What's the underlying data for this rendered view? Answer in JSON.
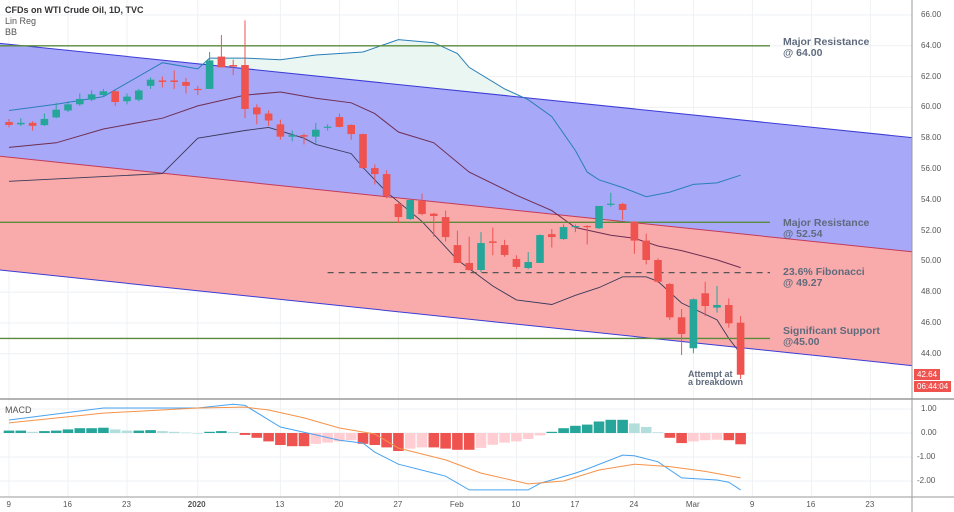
{
  "legend": {
    "title": "CFDs on WTI Crude Oil, 1D, TVC",
    "indicator1": "Lin Reg",
    "indicator2": "BB",
    "macd_label": "MACD"
  },
  "colors": {
    "up": "#26a69a",
    "down": "#ef5350",
    "hist_up_strong": "#26a69a",
    "hist_up_weak": "#b2dfdb",
    "hist_down_strong": "#ef5350",
    "hist_down_weak": "#ffcdd2",
    "macd_line": "#4aa3f0",
    "signal_line": "#f5934a",
    "channel_upper_fill": "#a7a8f8",
    "channel_lower_fill": "#f9abab",
    "channel_edge": "#3b3bd6",
    "channel_mid": "#c33b5a",
    "bb_band": "#2a7fb8",
    "bb_basis": "#6e2e52",
    "bb_fill": "#eaf6f1",
    "level_line": "#5a8a3c",
    "fib_line": "#555555",
    "annotation": "#5f6b7d"
  },
  "price_axis": {
    "ticks": [
      "66.00",
      "64.00",
      "62.00",
      "60.00",
      "58.00",
      "56.00",
      "54.00",
      "52.00",
      "50.00",
      "48.00",
      "46.00",
      "44.00"
    ],
    "last_price": "42.64",
    "countdown": "06:44:04"
  },
  "macd_axis": {
    "ticks": [
      "1.00",
      "0.00",
      "-1.00",
      "-2.00"
    ]
  },
  "time_axis": [
    {
      "label": "9",
      "date": "2019-12-09"
    },
    {
      "label": "16",
      "date": "2019-12-16"
    },
    {
      "label": "23",
      "date": "2019-12-23"
    },
    {
      "label": "2020",
      "date": "2020-01-02",
      "bold": true
    },
    {
      "label": "13",
      "date": "2020-01-13"
    },
    {
      "label": "20",
      "date": "2020-01-20"
    },
    {
      "label": "27",
      "date": "2020-01-27"
    },
    {
      "label": "Feb",
      "date": "2020-02-03"
    },
    {
      "label": "10",
      "date": "2020-02-10"
    },
    {
      "label": "17",
      "date": "2020-02-17"
    },
    {
      "label": "24",
      "date": "2020-02-24"
    },
    {
      "label": "Mar",
      "date": "2020-03-02"
    },
    {
      "label": "9",
      "date": "2020-03-09"
    },
    {
      "label": "16",
      "date": "2020-03-16"
    },
    {
      "label": "23",
      "date": "2020-03-23"
    }
  ],
  "levels": [
    {
      "name": "major-resistance-64",
      "price": 64.0,
      "style": "solid",
      "from": "2019-12-09",
      "label1": "Major Resistance",
      "label2": "@ 64.00"
    },
    {
      "name": "major-resistance-52",
      "price": 52.54,
      "style": "solid",
      "from": "2019-12-09",
      "label1": "Major Resistance",
      "label2": "@ 52.54"
    },
    {
      "name": "fibonacci-23-6",
      "price": 49.27,
      "style": "dashed",
      "from": "2020-01-17",
      "label1": "23.6% Fibonacci",
      "label2": "@ 49.27"
    },
    {
      "name": "significant-support-45",
      "price": 45.0,
      "style": "solid",
      "from": "2019-12-09",
      "label1": "Significant Support",
      "label2": "@45.00"
    }
  ],
  "breakdown_note": {
    "line1": "Attempt at",
    "line2": "a breakdown"
  },
  "chart_data": {
    "type": "candlestick",
    "title": "CFDs on WTI Crude Oil, 1D, TVC",
    "ylim": [
      42,
      66.5
    ],
    "grid": true,
    "candles": [
      {
        "d": "2019-12-09",
        "o": 59.05,
        "h": 59.25,
        "l": 58.7,
        "c": 58.86
      },
      {
        "d": "2019-12-10",
        "o": 58.9,
        "h": 59.3,
        "l": 58.8,
        "c": 59.0
      },
      {
        "d": "2019-12-11",
        "o": 59.0,
        "h": 59.1,
        "l": 58.5,
        "c": 58.8
      },
      {
        "d": "2019-12-12",
        "o": 58.85,
        "h": 59.6,
        "l": 58.8,
        "c": 59.25
      },
      {
        "d": "2019-12-13",
        "o": 59.35,
        "h": 60.3,
        "l": 59.3,
        "c": 59.85
      },
      {
        "d": "2019-12-16",
        "o": 59.8,
        "h": 60.4,
        "l": 59.7,
        "c": 60.2
      },
      {
        "d": "2019-12-17",
        "o": 60.2,
        "h": 60.9,
        "l": 60.1,
        "c": 60.55
      },
      {
        "d": "2019-12-18",
        "o": 60.5,
        "h": 61.1,
        "l": 60.4,
        "c": 60.85
      },
      {
        "d": "2019-12-19",
        "o": 60.8,
        "h": 61.2,
        "l": 60.7,
        "c": 61.05
      },
      {
        "d": "2019-12-20",
        "o": 61.05,
        "h": 61.1,
        "l": 60.1,
        "c": 60.35
      },
      {
        "d": "2019-12-23",
        "o": 60.4,
        "h": 60.9,
        "l": 60.2,
        "c": 60.7
      },
      {
        "d": "2019-12-24",
        "o": 60.5,
        "h": 61.2,
        "l": 60.4,
        "c": 61.1
      },
      {
        "d": "2019-12-26",
        "o": 61.4,
        "h": 61.95,
        "l": 61.2,
        "c": 61.8
      },
      {
        "d": "2019-12-27",
        "o": 61.75,
        "h": 62.0,
        "l": 61.3,
        "c": 61.65
      },
      {
        "d": "2019-12-30",
        "o": 61.75,
        "h": 62.4,
        "l": 61.2,
        "c": 61.65
      },
      {
        "d": "2019-12-31",
        "o": 61.65,
        "h": 61.9,
        "l": 60.9,
        "c": 61.4
      },
      {
        "d": "2020-01-02",
        "o": 61.2,
        "h": 61.4,
        "l": 60.8,
        "c": 61.15
      },
      {
        "d": "2020-01-03",
        "o": 61.2,
        "h": 63.6,
        "l": 61.2,
        "c": 63.05
      },
      {
        "d": "2020-01-06",
        "o": 63.3,
        "h": 64.7,
        "l": 62.6,
        "c": 62.6
      },
      {
        "d": "2020-01-07",
        "o": 62.75,
        "h": 63.1,
        "l": 62.1,
        "c": 62.65
      },
      {
        "d": "2020-01-08",
        "o": 62.75,
        "h": 65.65,
        "l": 59.3,
        "c": 59.9
      },
      {
        "d": "2020-01-09",
        "o": 60.0,
        "h": 60.2,
        "l": 58.9,
        "c": 59.55
      },
      {
        "d": "2020-01-10",
        "o": 59.6,
        "h": 59.8,
        "l": 58.8,
        "c": 59.15
      },
      {
        "d": "2020-01-13",
        "o": 58.9,
        "h": 59.2,
        "l": 57.9,
        "c": 58.1
      },
      {
        "d": "2020-01-14",
        "o": 58.1,
        "h": 58.5,
        "l": 57.8,
        "c": 58.2
      },
      {
        "d": "2020-01-15",
        "o": 58.2,
        "h": 58.3,
        "l": 57.6,
        "c": 58.1
      },
      {
        "d": "2020-01-16",
        "o": 58.1,
        "h": 59.0,
        "l": 57.6,
        "c": 58.55
      },
      {
        "d": "2020-01-17",
        "o": 58.7,
        "h": 58.9,
        "l": 58.5,
        "c": 58.75
      },
      {
        "d": "2020-01-20",
        "o": 59.37,
        "h": 59.6,
        "l": 58.7,
        "c": 58.73
      },
      {
        "d": "2020-01-21",
        "o": 58.86,
        "h": 58.9,
        "l": 57.9,
        "c": 58.27
      },
      {
        "d": "2020-01-22",
        "o": 58.27,
        "h": 58.3,
        "l": 56.0,
        "c": 56.06
      },
      {
        "d": "2020-01-23",
        "o": 56.06,
        "h": 56.3,
        "l": 55.0,
        "c": 55.67
      },
      {
        "d": "2020-01-24",
        "o": 55.67,
        "h": 55.9,
        "l": 54.1,
        "c": 54.25
      },
      {
        "d": "2020-01-27",
        "o": 53.73,
        "h": 53.8,
        "l": 52.5,
        "c": 52.88
      },
      {
        "d": "2020-01-28",
        "o": 52.75,
        "h": 54.0,
        "l": 52.7,
        "c": 53.99
      },
      {
        "d": "2020-01-29",
        "o": 53.92,
        "h": 54.4,
        "l": 53.0,
        "c": 53.08
      },
      {
        "d": "2020-01-30",
        "o": 53.1,
        "h": 53.15,
        "l": 51.6,
        "c": 52.95
      },
      {
        "d": "2020-01-31",
        "o": 52.88,
        "h": 53.3,
        "l": 51.3,
        "c": 51.58
      },
      {
        "d": "2020-02-03",
        "o": 51.06,
        "h": 52.0,
        "l": 49.9,
        "c": 49.9
      },
      {
        "d": "2020-02-04",
        "o": 49.9,
        "h": 51.6,
        "l": 49.4,
        "c": 49.44
      },
      {
        "d": "2020-02-05",
        "o": 49.44,
        "h": 51.9,
        "l": 49.3,
        "c": 51.19
      },
      {
        "d": "2020-02-06",
        "o": 51.3,
        "h": 52.2,
        "l": 50.4,
        "c": 51.2
      },
      {
        "d": "2020-02-07",
        "o": 51.06,
        "h": 51.4,
        "l": 50.3,
        "c": 50.42
      },
      {
        "d": "2020-02-10",
        "o": 50.16,
        "h": 50.4,
        "l": 49.5,
        "c": 49.64
      },
      {
        "d": "2020-02-11",
        "o": 49.57,
        "h": 50.6,
        "l": 49.5,
        "c": 49.96
      },
      {
        "d": "2020-02-12",
        "o": 49.9,
        "h": 51.75,
        "l": 49.9,
        "c": 51.71
      },
      {
        "d": "2020-02-13",
        "o": 51.77,
        "h": 52.1,
        "l": 50.9,
        "c": 51.58
      },
      {
        "d": "2020-02-14",
        "o": 51.45,
        "h": 52.4,
        "l": 51.4,
        "c": 52.23
      },
      {
        "d": "2020-02-17",
        "o": 52.25,
        "h": 52.4,
        "l": 51.9,
        "c": 52.3
      },
      {
        "d": "2020-02-18",
        "o": 52.3,
        "h": 52.35,
        "l": 51.1,
        "c": 52.23
      },
      {
        "d": "2020-02-19",
        "o": 52.15,
        "h": 53.6,
        "l": 52.1,
        "c": 53.6
      },
      {
        "d": "2020-02-20",
        "o": 53.7,
        "h": 54.46,
        "l": 53.55,
        "c": 53.75
      },
      {
        "d": "2020-02-21",
        "o": 53.73,
        "h": 53.8,
        "l": 52.7,
        "c": 53.34
      },
      {
        "d": "2020-02-24",
        "o": 52.58,
        "h": 52.6,
        "l": 50.5,
        "c": 51.35
      },
      {
        "d": "2020-02-25",
        "o": 51.35,
        "h": 51.8,
        "l": 49.8,
        "c": 50.09
      },
      {
        "d": "2020-02-26",
        "o": 50.09,
        "h": 50.2,
        "l": 48.6,
        "c": 48.68
      },
      {
        "d": "2020-02-27",
        "o": 48.53,
        "h": 48.6,
        "l": 46.2,
        "c": 46.37
      },
      {
        "d": "2020-02-28",
        "o": 46.37,
        "h": 46.9,
        "l": 43.92,
        "c": 45.29
      },
      {
        "d": "2020-03-02",
        "o": 44.36,
        "h": 47.6,
        "l": 44.03,
        "c": 47.54
      },
      {
        "d": "2020-03-03",
        "o": 47.93,
        "h": 48.68,
        "l": 46.45,
        "c": 47.1
      },
      {
        "d": "2020-03-04",
        "o": 47.0,
        "h": 48.4,
        "l": 46.67,
        "c": 47.17
      },
      {
        "d": "2020-03-05",
        "o": 47.17,
        "h": 47.6,
        "l": 45.7,
        "c": 45.98
      },
      {
        "d": "2020-03-06",
        "o": 46.02,
        "h": 46.45,
        "l": 42.36,
        "c": 42.64
      }
    ],
    "linreg": {
      "dates": [
        "2019-12-09",
        "2020-03-06"
      ],
      "upper": [
        64.1,
        59.19
      ],
      "middle": [
        56.77,
        51.79
      ],
      "lower": [
        49.38,
        44.4
      ]
    },
    "bollinger": {
      "upper": [
        [
          "2019-12-09",
          59.8
        ],
        [
          "2019-12-13",
          60.2
        ],
        [
          "2019-12-19",
          60.7
        ],
        [
          "2019-12-27",
          62.9
        ],
        [
          "2020-01-02",
          62.5
        ],
        [
          "2020-01-03",
          63.2
        ],
        [
          "2020-01-08",
          63.2
        ],
        [
          "2020-01-13",
          63.1
        ],
        [
          "2020-01-16",
          63.4
        ],
        [
          "2020-01-22",
          63.6
        ],
        [
          "2020-01-27",
          64.4
        ],
        [
          "2020-01-30",
          64.2
        ],
        [
          "2020-02-03",
          63.5
        ],
        [
          "2020-02-04",
          62.6
        ],
        [
          "2020-02-07",
          61.2
        ],
        [
          "2020-02-11",
          60.5
        ],
        [
          "2020-02-13",
          59.4
        ],
        [
          "2020-02-17",
          57.2
        ],
        [
          "2020-02-18",
          55.8
        ],
        [
          "2020-02-19",
          55.3
        ],
        [
          "2020-02-21",
          54.8
        ],
        [
          "2020-02-25",
          54.2
        ],
        [
          "2020-02-27",
          54.5
        ],
        [
          "2020-03-02",
          55.0
        ],
        [
          "2020-03-04",
          55.1
        ],
        [
          "2020-03-06",
          55.6
        ]
      ],
      "basis": [
        [
          "2019-12-09",
          57.4
        ],
        [
          "2019-12-13",
          57.7
        ],
        [
          "2019-12-19",
          58.6
        ],
        [
          "2019-12-27",
          59.3
        ],
        [
          "2020-01-02",
          60.1
        ],
        [
          "2020-01-08",
          60.8
        ],
        [
          "2020-01-13",
          61.0
        ],
        [
          "2020-01-16",
          60.6
        ],
        [
          "2020-01-21",
          60.3
        ],
        [
          "2020-01-23",
          59.6
        ],
        [
          "2020-01-27",
          58.4
        ],
        [
          "2020-01-30",
          57.7
        ],
        [
          "2020-02-04",
          55.8
        ],
        [
          "2020-02-10",
          54.3
        ],
        [
          "2020-02-13",
          53.3
        ],
        [
          "2020-02-17",
          52.2
        ],
        [
          "2020-02-20",
          51.7
        ],
        [
          "2020-02-24",
          51.5
        ],
        [
          "2020-02-26",
          51.0
        ],
        [
          "2020-02-28",
          50.7
        ],
        [
          "2020-03-04",
          50.1
        ],
        [
          "2020-03-06",
          49.6
        ]
      ],
      "lower": [
        [
          "2019-12-09",
          55.2
        ],
        [
          "2019-12-27",
          55.7
        ],
        [
          "2020-01-02",
          58.0
        ],
        [
          "2020-01-08",
          58.5
        ],
        [
          "2020-01-10",
          58.7
        ],
        [
          "2020-01-15",
          58.0
        ],
        [
          "2020-01-16",
          57.6
        ],
        [
          "2020-01-21",
          57.0
        ],
        [
          "2020-01-22",
          56.1
        ],
        [
          "2020-01-24",
          54.5
        ],
        [
          "2020-01-29",
          52.6
        ],
        [
          "2020-02-03",
          50.1
        ],
        [
          "2020-02-06",
          48.4
        ],
        [
          "2020-02-10",
          47.5
        ],
        [
          "2020-02-13",
          47.2
        ],
        [
          "2020-02-17",
          47.8
        ],
        [
          "2020-02-19",
          48.3
        ],
        [
          "2020-02-21",
          49.0
        ],
        [
          "2020-02-25",
          49.0
        ],
        [
          "2020-02-26",
          48.7
        ],
        [
          "2020-02-28",
          47.3
        ],
        [
          "2020-03-04",
          46.2
        ],
        [
          "2020-03-05",
          45.0
        ],
        [
          "2020-03-06",
          44.0
        ]
      ]
    },
    "macd": {
      "ylim": [
        -2.6,
        1.4
      ],
      "histogram": [
        0.1,
        0.1,
        0.05,
        0.08,
        0.1,
        0.15,
        0.2,
        0.2,
        0.22,
        0.15,
        0.1,
        0.1,
        0.12,
        0.08,
        0.05,
        0.02,
        0,
        0.05,
        0.08,
        0.04,
        -0.08,
        -0.2,
        -0.35,
        -0.5,
        -0.55,
        -0.55,
        -0.45,
        -0.4,
        -0.35,
        -0.3,
        -0.45,
        -0.5,
        -0.6,
        -0.75,
        -0.65,
        -0.6,
        -0.6,
        -0.65,
        -0.7,
        -0.7,
        -0.62,
        -0.49,
        -0.4,
        -0.35,
        -0.25,
        -0.1,
        0.05,
        0.2,
        0.3,
        0.35,
        0.48,
        0.55,
        0.55,
        0.4,
        0.25,
        0.03,
        -0.2,
        -0.42,
        -0.35,
        -0.3,
        -0.28,
        -0.3,
        -0.47
      ],
      "macd_line": [
        [
          "2019-12-09",
          0.54
        ],
        [
          "2019-12-19",
          1.04
        ],
        [
          "2020-01-02",
          1.04
        ],
        [
          "2020-01-07",
          1.2
        ],
        [
          "2020-01-08",
          1.15
        ],
        [
          "2020-01-13",
          0.25
        ],
        [
          "2020-01-16",
          -0.08
        ],
        [
          "2020-01-20",
          -0.3
        ],
        [
          "2020-01-22",
          -0.42
        ],
        [
          "2020-01-23",
          -0.8
        ],
        [
          "2020-01-27",
          -1.3
        ],
        [
          "2020-01-30",
          -1.67
        ],
        [
          "2020-01-31",
          -1.8
        ],
        [
          "2020-02-04",
          -2.37
        ],
        [
          "2020-02-11",
          -2.37
        ],
        [
          "2020-02-12",
          -2.1
        ],
        [
          "2020-02-17",
          -1.67
        ],
        [
          "2020-02-18",
          -1.5
        ],
        [
          "2020-02-21",
          -0.92
        ],
        [
          "2020-02-24",
          -0.95
        ],
        [
          "2020-02-26",
          -1.2
        ],
        [
          "2020-02-28",
          -1.87
        ],
        [
          "2020-03-04",
          -1.96
        ],
        [
          "2020-03-05",
          -2.05
        ],
        [
          "2020-03-06",
          -2.37
        ]
      ],
      "signal_line": [
        [
          "2019-12-09",
          0.42
        ],
        [
          "2019-12-19",
          0.83
        ],
        [
          "2020-01-02",
          1.04
        ],
        [
          "2020-01-08",
          1.08
        ],
        [
          "2020-01-10",
          0.96
        ],
        [
          "2020-01-15",
          0.63
        ],
        [
          "2020-01-20",
          0.21
        ],
        [
          "2020-01-23",
          -0.04
        ],
        [
          "2020-01-27",
          -0.63
        ],
        [
          "2020-01-31",
          -1.12
        ],
        [
          "2020-02-05",
          -1.67
        ],
        [
          "2020-02-11",
          -2.12
        ],
        [
          "2020-02-14",
          -2.0
        ],
        [
          "2020-02-19",
          -1.54
        ],
        [
          "2020-02-24",
          -1.3
        ],
        [
          "2020-02-27",
          -1.4
        ],
        [
          "2020-03-03",
          -1.6
        ],
        [
          "2020-03-06",
          -1.87
        ]
      ]
    }
  }
}
